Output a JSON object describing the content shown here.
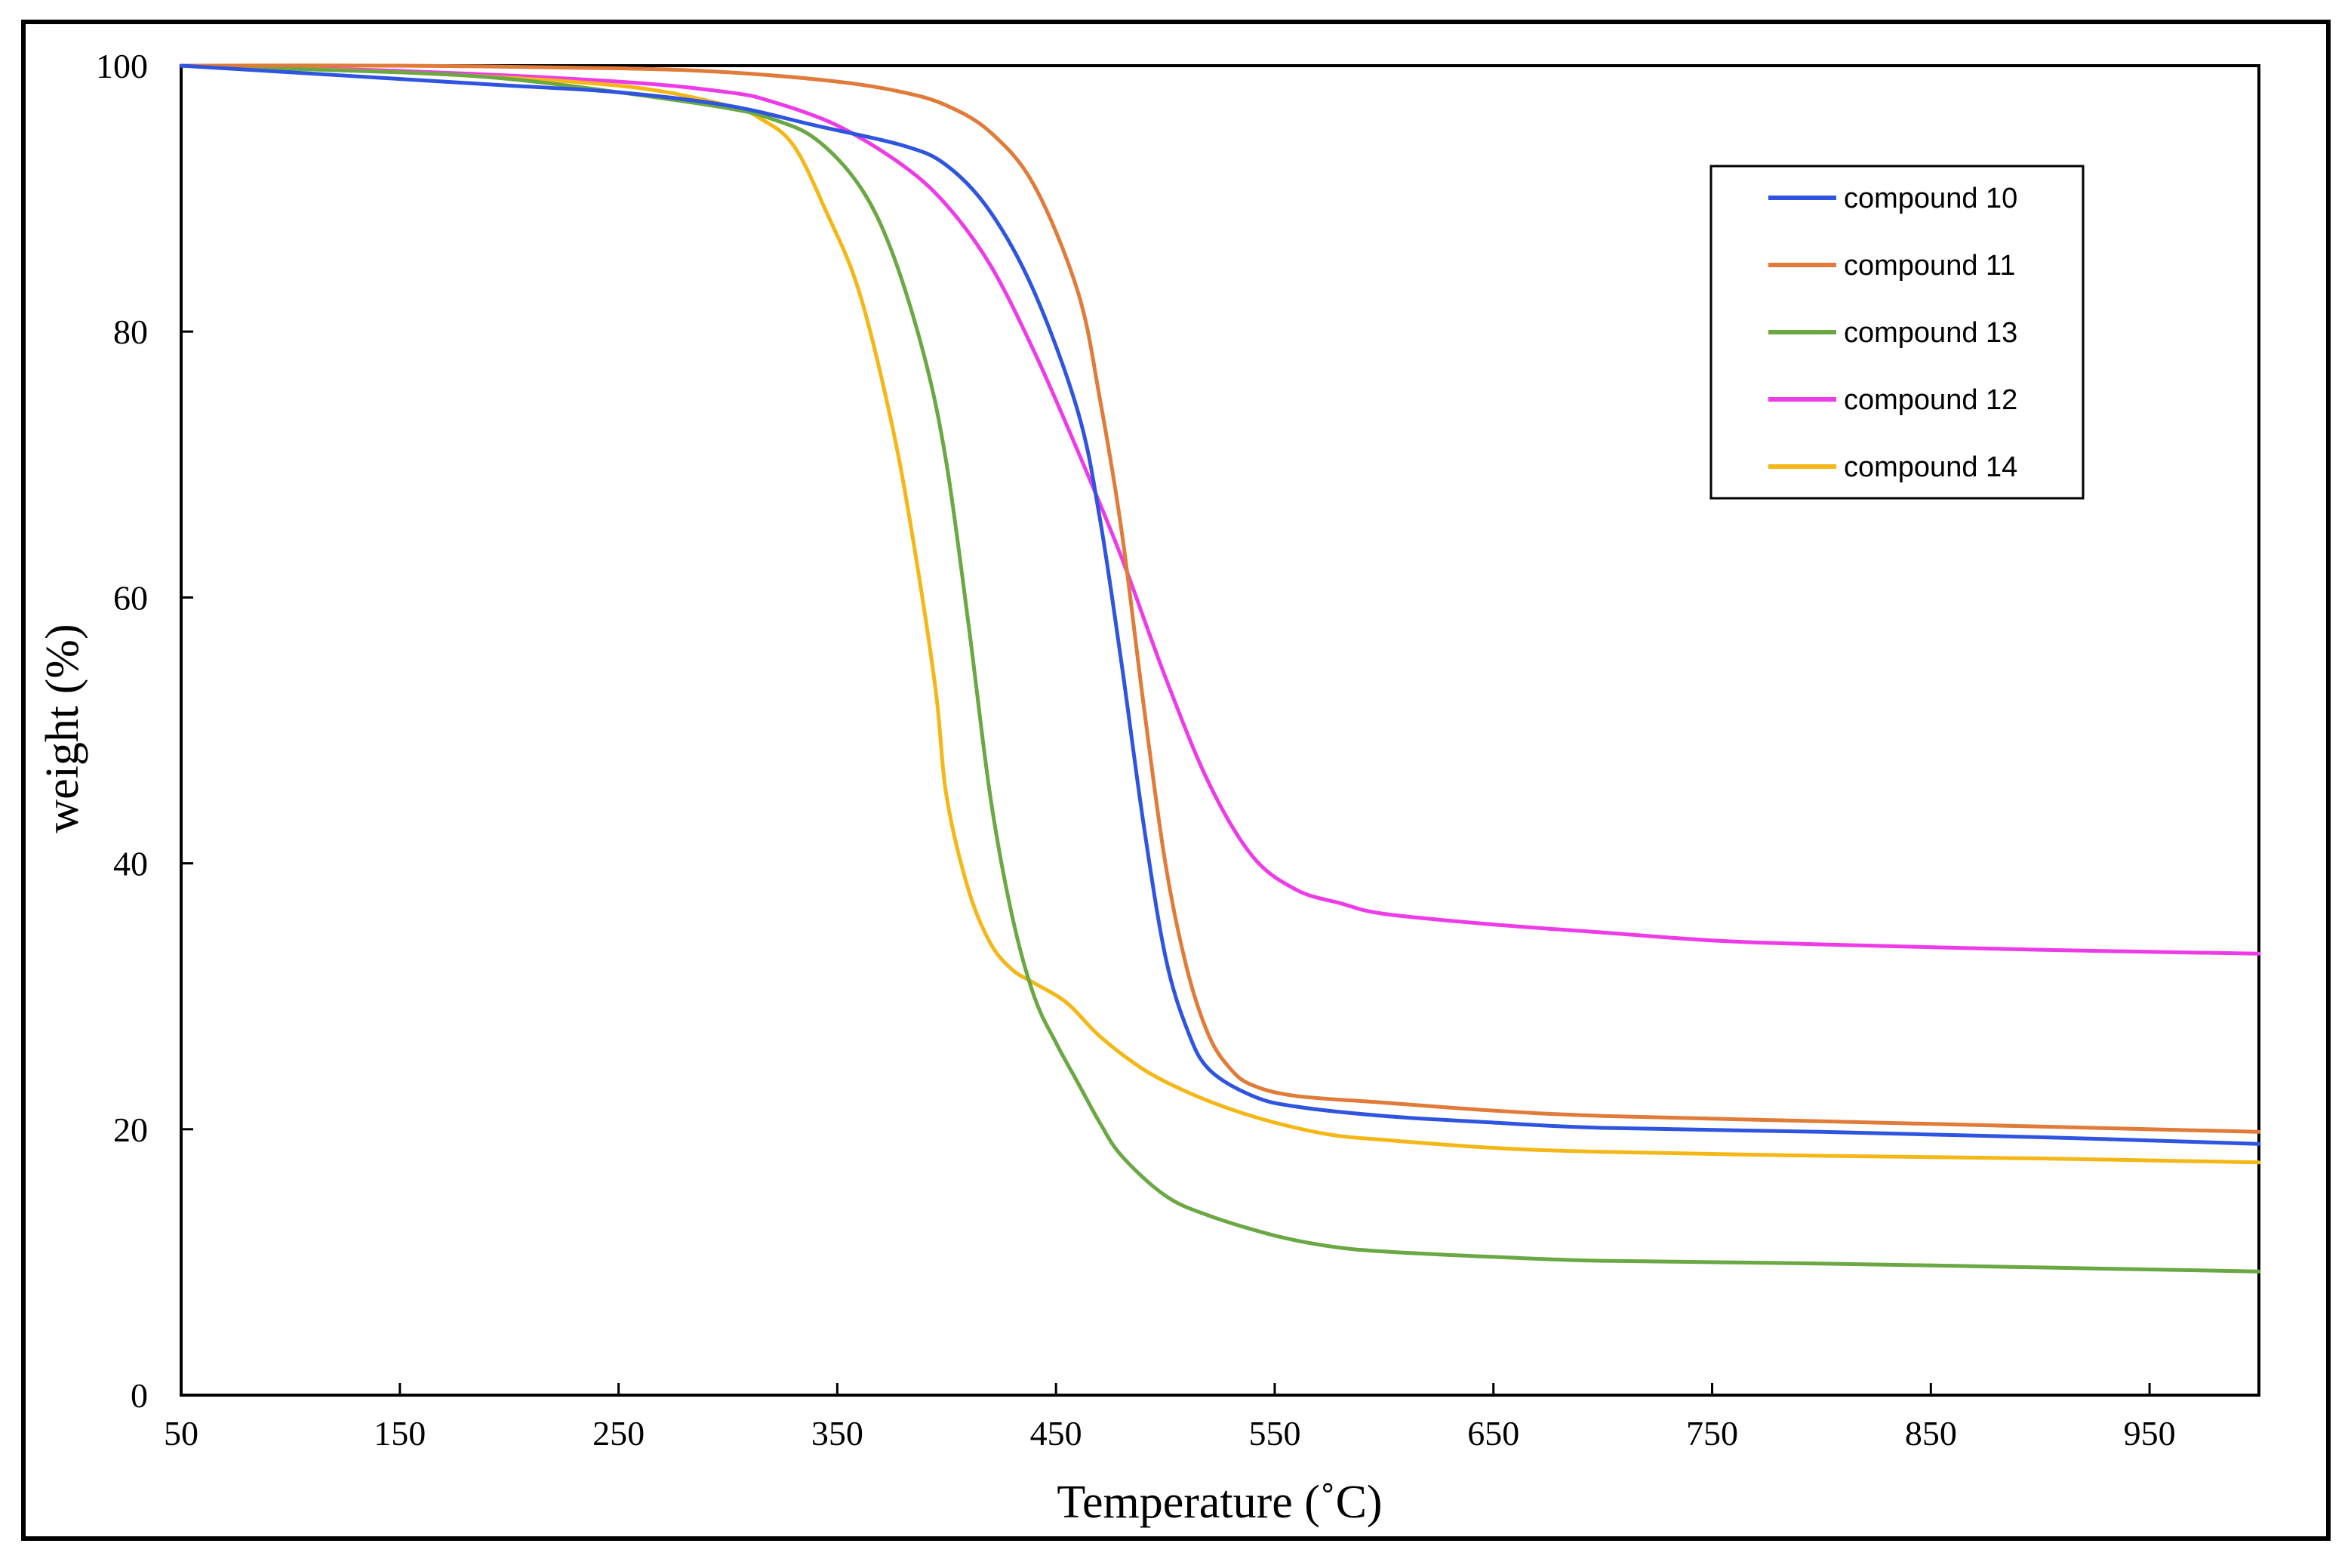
{
  "chart_data": {
    "type": "line",
    "title": "",
    "xlabel": "Temperature (˚C)",
    "ylabel": "weight (%)",
    "xlim": [
      50,
      1000
    ],
    "ylim": [
      0,
      100
    ],
    "xticks": [
      50,
      150,
      250,
      350,
      450,
      550,
      650,
      750,
      850,
      950
    ],
    "yticks": [
      0,
      20,
      40,
      60,
      80,
      100
    ],
    "xtick_labels": [
      "50",
      "150",
      "250",
      "350",
      "450",
      "550",
      "650",
      "750",
      "850",
      "950"
    ],
    "ytick_labels": [
      "0",
      "20",
      "40",
      "60",
      "80",
      "100"
    ],
    "grid": false,
    "legend_position": "top-right",
    "series": [
      {
        "name": "compound 10",
        "color": "#2f55e0",
        "points": [
          [
            50,
            100
          ],
          [
            100,
            99.5
          ],
          [
            150,
            99
          ],
          [
            200,
            98.5
          ],
          [
            250,
            98
          ],
          [
            300,
            97
          ],
          [
            340,
            95.5
          ],
          [
            380,
            94
          ],
          [
            400,
            92.5
          ],
          [
            420,
            89
          ],
          [
            440,
            83
          ],
          [
            460,
            74
          ],
          [
            470,
            66
          ],
          [
            480,
            55
          ],
          [
            490,
            43
          ],
          [
            500,
            33
          ],
          [
            510,
            27.5
          ],
          [
            520,
            24.5
          ],
          [
            540,
            22.5
          ],
          [
            560,
            21.7
          ],
          [
            600,
            21
          ],
          [
            650,
            20.5
          ],
          [
            700,
            20.1
          ],
          [
            800,
            19.8
          ],
          [
            900,
            19.4
          ],
          [
            1000,
            18.9
          ]
        ]
      },
      {
        "name": "compound 11",
        "color": "#e07b39",
        "points": [
          [
            50,
            100
          ],
          [
            150,
            100
          ],
          [
            250,
            99.8
          ],
          [
            300,
            99.5
          ],
          [
            350,
            98.8
          ],
          [
            380,
            98
          ],
          [
            400,
            97
          ],
          [
            420,
            95
          ],
          [
            440,
            91
          ],
          [
            460,
            83
          ],
          [
            470,
            75
          ],
          [
            480,
            65
          ],
          [
            490,
            52
          ],
          [
            500,
            40
          ],
          [
            510,
            32
          ],
          [
            520,
            27
          ],
          [
            530,
            24.5
          ],
          [
            540,
            23.3
          ],
          [
            560,
            22.5
          ],
          [
            600,
            22
          ],
          [
            650,
            21.4
          ],
          [
            700,
            21
          ],
          [
            800,
            20.6
          ],
          [
            900,
            20.2
          ],
          [
            1000,
            19.8
          ]
        ]
      },
      {
        "name": "compound 13",
        "color": "#6aa844",
        "points": [
          [
            50,
            100
          ],
          [
            150,
            99.5
          ],
          [
            200,
            99
          ],
          [
            250,
            98
          ],
          [
            300,
            96.8
          ],
          [
            320,
            96
          ],
          [
            340,
            94.5
          ],
          [
            360,
            91
          ],
          [
            375,
            86
          ],
          [
            390,
            78
          ],
          [
            400,
            70
          ],
          [
            410,
            58
          ],
          [
            420,
            45
          ],
          [
            430,
            36
          ],
          [
            440,
            30
          ],
          [
            450,
            26.5
          ],
          [
            460,
            23.5
          ],
          [
            470,
            20.5
          ],
          [
            480,
            18
          ],
          [
            500,
            15
          ],
          [
            520,
            13.5
          ],
          [
            550,
            12
          ],
          [
            575,
            11.2
          ],
          [
            600,
            10.8
          ],
          [
            650,
            10.4
          ],
          [
            700,
            10.1
          ],
          [
            800,
            9.9
          ],
          [
            900,
            9.6
          ],
          [
            1000,
            9.3
          ]
        ]
      },
      {
        "name": "compound 12",
        "color": "#ee3be8",
        "points": [
          [
            50,
            100
          ],
          [
            150,
            99.6
          ],
          [
            250,
            98.8
          ],
          [
            300,
            98
          ],
          [
            320,
            97.3
          ],
          [
            350,
            95.5
          ],
          [
            380,
            92.5
          ],
          [
            400,
            89.5
          ],
          [
            420,
            85
          ],
          [
            440,
            78.5
          ],
          [
            460,
            71
          ],
          [
            480,
            63
          ],
          [
            500,
            54
          ],
          [
            520,
            46
          ],
          [
            540,
            40.5
          ],
          [
            560,
            38
          ],
          [
            580,
            37
          ],
          [
            600,
            36.2
          ],
          [
            650,
            35.4
          ],
          [
            700,
            34.8
          ],
          [
            750,
            34.2
          ],
          [
            800,
            33.9
          ],
          [
            900,
            33.5
          ],
          [
            1000,
            33.2
          ]
        ]
      },
      {
        "name": "compound 14",
        "color": "#f5b716",
        "points": [
          [
            50,
            100
          ],
          [
            150,
            99.5
          ],
          [
            250,
            98.5
          ],
          [
            300,
            97
          ],
          [
            315,
            96
          ],
          [
            330,
            94
          ],
          [
            345,
            89
          ],
          [
            360,
            83
          ],
          [
            375,
            73
          ],
          [
            385,
            64
          ],
          [
            395,
            53
          ],
          [
            400,
            45
          ],
          [
            410,
            38
          ],
          [
            420,
            34
          ],
          [
            430,
            32
          ],
          [
            440,
            31
          ],
          [
            455,
            29.5
          ],
          [
            470,
            27
          ],
          [
            490,
            24.5
          ],
          [
            510,
            22.8
          ],
          [
            530,
            21.5
          ],
          [
            550,
            20.5
          ],
          [
            575,
            19.6
          ],
          [
            600,
            19.2
          ],
          [
            650,
            18.6
          ],
          [
            700,
            18.3
          ],
          [
            800,
            18
          ],
          [
            900,
            17.8
          ],
          [
            1000,
            17.5
          ]
        ]
      }
    ]
  }
}
